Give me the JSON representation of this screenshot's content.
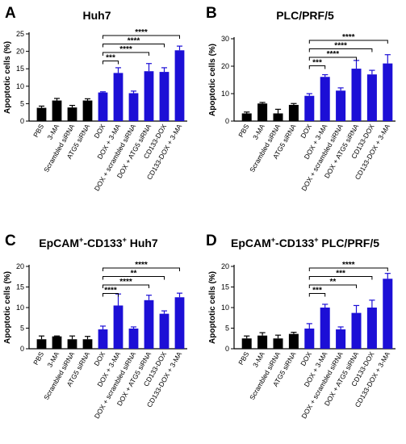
{
  "chart_data": [
    {
      "type": "bar",
      "panel": "A",
      "title": "Huh7",
      "ylabel": "Apoptotic cells (%)",
      "ylim": [
        0,
        25
      ],
      "yticks": [
        0,
        5,
        10,
        15,
        20,
        25
      ],
      "categories": [
        "PBS",
        "3-MA",
        "Scrambled siRNA",
        "ATG5 siRNA",
        "DOX",
        "DOX + 3-MA",
        "DOX + scrambled siRNA",
        "DOX + ATG5 siRNA",
        "CD133-DOX",
        "CD133-DOX + 3-MA"
      ],
      "values": [
        3.8,
        5.9,
        3.9,
        5.9,
        8.2,
        13.8,
        8.0,
        14.3,
        14.1,
        20.3
      ],
      "errors": [
        0.5,
        0.6,
        0.6,
        0.5,
        0.2,
        1.5,
        0.6,
        2.2,
        1.2,
        1.2
      ],
      "colors": [
        "#000000",
        "#000000",
        "#000000",
        "#000000",
        "#1c0fd6",
        "#1c0fd6",
        "#1c0fd6",
        "#1c0fd6",
        "#1c0fd6",
        "#1c0fd6"
      ],
      "comparisons": [
        {
          "from": 4,
          "to": 5,
          "label": "***"
        },
        {
          "from": 4,
          "to": 7,
          "label": "****"
        },
        {
          "from": 4,
          "to": 8,
          "label": "****"
        },
        {
          "from": 4,
          "to": 9,
          "label": "****"
        }
      ]
    },
    {
      "type": "bar",
      "panel": "B",
      "title": "PLC/PRF/5",
      "ylabel": "Apoptotic cells (%)",
      "ylim": [
        0,
        30
      ],
      "yticks": [
        0,
        10,
        20,
        30
      ],
      "categories": [
        "PBS",
        "3-MA",
        "Scrambled siRNA",
        "ATG5 siRNA",
        "DOX",
        "DOX + 3-MA",
        "DOX + scrambled siRNA",
        "DOX + ATG5 siRNA",
        "CD133-DOX",
        "CD133-DOX + 3-MA"
      ],
      "values": [
        2.8,
        6.4,
        2.8,
        5.9,
        9.2,
        16.1,
        11.1,
        19.1,
        17.0,
        21.0
      ],
      "errors": [
        0.5,
        0.4,
        1.5,
        0.5,
        0.8,
        0.8,
        1.0,
        3.0,
        1.5,
        3.2
      ],
      "colors": [
        "#000000",
        "#000000",
        "#000000",
        "#000000",
        "#1c0fd6",
        "#1c0fd6",
        "#1c0fd6",
        "#1c0fd6",
        "#1c0fd6",
        "#1c0fd6"
      ],
      "comparisons": [
        {
          "from": 4,
          "to": 5,
          "label": "***"
        },
        {
          "from": 4,
          "to": 7,
          "label": "****"
        },
        {
          "from": 4,
          "to": 8,
          "label": "****"
        },
        {
          "from": 4,
          "to": 9,
          "label": "****"
        }
      ]
    },
    {
      "type": "bar",
      "panel": "C",
      "title": "EpCAM",
      "title_sup": "+",
      "title_mid": "-CD133",
      "title_sup2": "+",
      "title_end": " Huh7",
      "ylabel": "Apoptotic cells (%)",
      "ylim": [
        0,
        20
      ],
      "yticks": [
        0,
        5,
        10,
        15,
        20
      ],
      "categories": [
        "PBS",
        "3-MA",
        "Scrambled siRNA",
        "ATG5 siRNA",
        "DOX",
        "DOX + 3-MA",
        "DOX + scrambled siRNA",
        "DOX + ATG5 siRNA",
        "CD133-DOX",
        "CD133-DOX + 3-MA"
      ],
      "values": [
        2.3,
        3.0,
        2.3,
        2.3,
        4.7,
        10.5,
        4.9,
        11.8,
        8.5,
        12.5
      ],
      "errors": [
        0.8,
        0.1,
        0.8,
        0.7,
        0.8,
        2.8,
        0.4,
        1.2,
        0.7,
        1.0
      ],
      "colors": [
        "#000000",
        "#000000",
        "#000000",
        "#000000",
        "#1c0fd6",
        "#1c0fd6",
        "#1c0fd6",
        "#1c0fd6",
        "#1c0fd6",
        "#1c0fd6"
      ],
      "comparisons": [
        {
          "from": 4,
          "to": 5,
          "label": "****"
        },
        {
          "from": 4,
          "to": 7,
          "label": "****"
        },
        {
          "from": 4,
          "to": 8,
          "label": "**"
        },
        {
          "from": 4,
          "to": 9,
          "label": "****"
        }
      ]
    },
    {
      "type": "bar",
      "panel": "D",
      "title": "EpCAM",
      "title_sup": "+",
      "title_mid": "-CD133",
      "title_sup2": "+",
      "title_end": " PLC/PRF/5",
      "ylabel": "Apoptotic cells (%)",
      "ylim": [
        0,
        20
      ],
      "yticks": [
        0,
        5,
        10,
        15,
        20
      ],
      "categories": [
        "PBS",
        "3-MA",
        "Scrambled siRNA",
        "ATG5 siRNA",
        "DOX",
        "DOX + 3-MA",
        "DOX + scrambled siRNA",
        "DOX + ATG5 siRNA",
        "CD133-DOX",
        "CD133-DOX + 3-MA"
      ],
      "values": [
        2.5,
        3.2,
        2.5,
        3.6,
        4.9,
        10.0,
        4.7,
        8.7,
        10.0,
        17.0
      ],
      "errors": [
        0.6,
        0.7,
        0.8,
        0.4,
        1.2,
        0.8,
        0.6,
        1.8,
        1.8,
        1.3
      ],
      "colors": [
        "#000000",
        "#000000",
        "#000000",
        "#000000",
        "#1c0fd6",
        "#1c0fd6",
        "#1c0fd6",
        "#1c0fd6",
        "#1c0fd6",
        "#1c0fd6"
      ],
      "comparisons": [
        {
          "from": 4,
          "to": 5,
          "label": "***"
        },
        {
          "from": 4,
          "to": 7,
          "label": "**"
        },
        {
          "from": 4,
          "to": 8,
          "label": "***"
        },
        {
          "from": 4,
          "to": 9,
          "label": "****"
        }
      ]
    }
  ]
}
